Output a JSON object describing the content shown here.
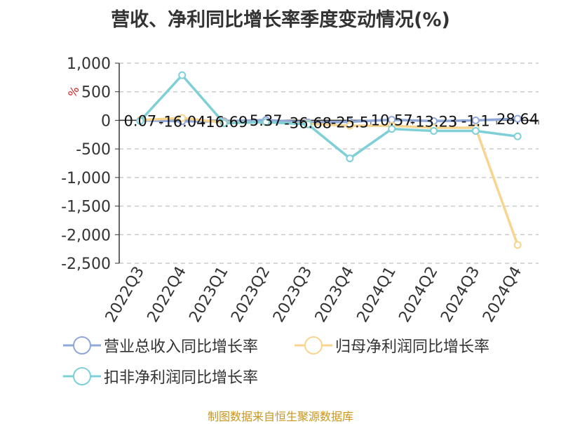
{
  "chart_data": {
    "type": "line",
    "title": "营收、净利同比增长率季度变动情况(%)",
    "ylabel": "%",
    "categories": [
      "2022Q3",
      "2022Q4",
      "2023Q1",
      "2023Q2",
      "2023Q3",
      "2023Q4",
      "2024Q1",
      "2024Q2",
      "2024Q3",
      "2024Q4"
    ],
    "ylim": [
      -2500,
      1000
    ],
    "yticks": [
      1000,
      500,
      0,
      -500,
      -1000,
      -1500,
      -2000,
      -2500
    ],
    "ytick_labels": [
      "1,000",
      "500",
      "0",
      "-500",
      "-1,000",
      "-1,500",
      "-2,000",
      "-2,500"
    ],
    "grid": true,
    "legend_position": "bottom",
    "series": [
      {
        "name": "营业总收入同比增长率",
        "color": "#8fa8d8",
        "values": [
          0.07,
          -16.04,
          -16.69,
          5.37,
          -36.68,
          -25.5,
          10.57,
          -13.23,
          -1.1,
          28.64
        ],
        "labels": [
          "0.07",
          "-16.04",
          "-16.69",
          "5.37",
          "-36.68",
          "-25.5",
          "10.57",
          "-13.23",
          "-1.1",
          "28.64"
        ]
      },
      {
        "name": "归母净利润同比增长率",
        "color": "#f8d58f",
        "values": [
          5,
          40,
          -40,
          -35,
          -60,
          -95,
          -95,
          -130,
          -130,
          -2180
        ]
      },
      {
        "name": "扣非净利润同比增长率",
        "color": "#7ed0d6",
        "values": [
          -10,
          790,
          -50,
          -30,
          -70,
          -665,
          -150,
          -185,
          -185,
          -280
        ]
      }
    ]
  },
  "source_text": "制图数据来自恒生聚源数据库"
}
